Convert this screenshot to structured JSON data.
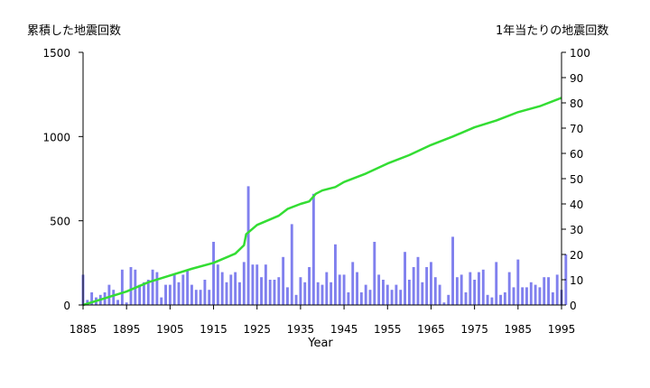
{
  "chart_data": {
    "type": "bar+line",
    "title": "",
    "xlabel": "Year",
    "y_left_label": "累積した地震回数",
    "y_right_label": "1年当たりの地震回数",
    "xlim": [
      1885,
      1995
    ],
    "x_ticks": [
      "1885",
      "1895",
      "1905",
      "1915",
      "1925",
      "1935",
      "1945",
      "1955",
      "1965",
      "1975",
      "1985",
      "1995"
    ],
    "y_left_lim": [
      0,
      1500
    ],
    "y_left_ticks": [
      "0",
      "500",
      "1000",
      "1500"
    ],
    "y_right_lim": [
      0,
      100
    ],
    "y_right_ticks": [
      "0",
      "10",
      "20",
      "30",
      "40",
      "50",
      "60",
      "70",
      "80",
      "90",
      "100"
    ],
    "bar_color": "#8080ee",
    "line_color": "#33dd33",
    "annual_counts": {
      "start_year": 1885,
      "values": [
        12,
        2,
        5,
        3,
        4,
        5,
        8,
        6,
        2,
        14,
        1,
        15,
        14,
        8,
        9,
        10,
        14,
        13,
        3,
        8,
        8,
        12,
        9,
        12,
        14,
        8,
        6,
        6,
        10,
        6,
        25,
        16,
        13,
        9,
        12,
        13,
        9,
        17,
        47,
        16,
        16,
        11,
        16,
        10,
        10,
        11,
        19,
        7,
        32,
        4,
        11,
        9,
        15,
        44,
        9,
        8,
        13,
        9,
        24,
        12,
        12,
        5,
        17,
        13,
        5,
        8,
        6,
        25,
        12,
        10,
        8,
        6,
        8,
        6,
        21,
        10,
        15,
        19,
        9,
        15,
        17,
        11,
        8,
        1,
        4,
        27,
        11,
        12,
        5,
        13,
        10,
        13,
        14,
        4,
        3,
        17,
        4,
        5,
        13,
        7,
        18,
        7,
        7,
        9,
        8,
        7,
        11,
        11,
        5,
        12,
        6,
        20
      ]
    },
    "cumulative": {
      "x": [
        1885,
        1890,
        1895,
        1900,
        1905,
        1910,
        1915,
        1920,
        1922,
        1922.5,
        1925,
        1930,
        1932,
        1935,
        1937,
        1938.5,
        1940,
        1943,
        1945,
        1950,
        1955,
        1960,
        1965,
        1970,
        1975,
        1980,
        1985,
        1990,
        1995
      ],
      "y": [
        0,
        40,
        80,
        135,
        175,
        215,
        250,
        305,
        355,
        420,
        475,
        530,
        570,
        600,
        615,
        660,
        680,
        700,
        730,
        780,
        840,
        890,
        950,
        1000,
        1055,
        1095,
        1145,
        1180,
        1230
      ]
    }
  }
}
